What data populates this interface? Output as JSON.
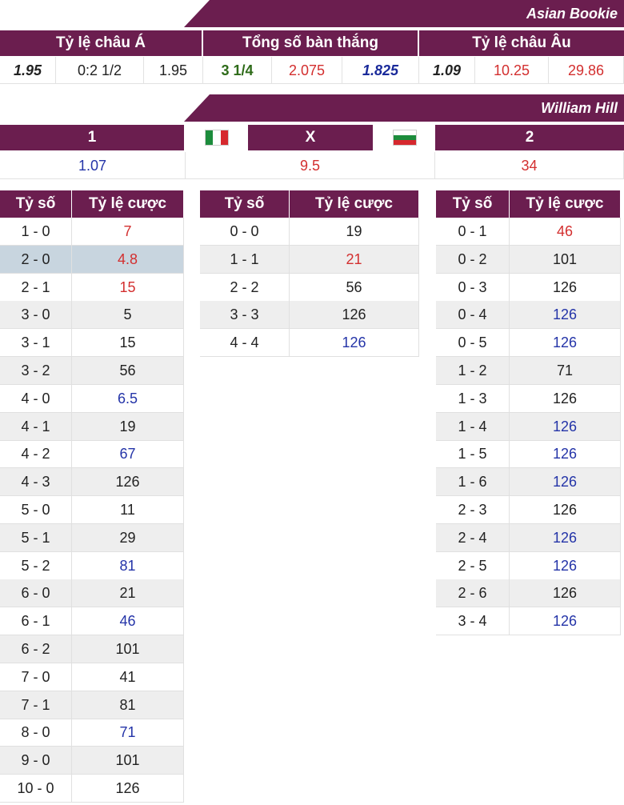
{
  "asian_bookie": {
    "title": "Asian Bookie",
    "headers": [
      "Tỷ lệ châu Á",
      "Tổng số bàn thắng",
      "Tỷ lệ châu Âu"
    ],
    "values": [
      "1.95",
      "0:2 1/2",
      "1.95",
      "3 1/4",
      "2.075",
      "1.825",
      "1.09",
      "10.25",
      "29.86"
    ]
  },
  "william_hill": {
    "title": "William Hill",
    "headers": [
      "1",
      "X",
      "2"
    ],
    "values": [
      "1.07",
      "9.5",
      "34"
    ],
    "flags": [
      "italy-flag",
      "bulgaria-flag"
    ]
  },
  "colors": {
    "header_bg": "#6b1e4f",
    "red": "#d32f2f",
    "blue": "#2434a8"
  },
  "score_tables": {
    "col_score": "Tỷ số",
    "col_odds": "Tỷ lệ cược",
    "home": [
      {
        "score": "1 - 0",
        "odds": "7",
        "color": "red"
      },
      {
        "score": "2 - 0",
        "odds": "4.8",
        "color": "red",
        "highlight": true
      },
      {
        "score": "2 - 1",
        "odds": "15",
        "color": "red"
      },
      {
        "score": "3 - 0",
        "odds": "5",
        "color": "dark"
      },
      {
        "score": "3 - 1",
        "odds": "15",
        "color": "dark"
      },
      {
        "score": "3 - 2",
        "odds": "56",
        "color": "dark"
      },
      {
        "score": "4 - 0",
        "odds": "6.5",
        "color": "blue"
      },
      {
        "score": "4 - 1",
        "odds": "19",
        "color": "dark"
      },
      {
        "score": "4 - 2",
        "odds": "67",
        "color": "blue"
      },
      {
        "score": "4 - 3",
        "odds": "126",
        "color": "dark"
      },
      {
        "score": "5 - 0",
        "odds": "11",
        "color": "dark"
      },
      {
        "score": "5 - 1",
        "odds": "29",
        "color": "dark"
      },
      {
        "score": "5 - 2",
        "odds": "81",
        "color": "blue"
      },
      {
        "score": "6 - 0",
        "odds": "21",
        "color": "dark"
      },
      {
        "score": "6 - 1",
        "odds": "46",
        "color": "blue"
      },
      {
        "score": "6 - 2",
        "odds": "101",
        "color": "dark"
      },
      {
        "score": "7 - 0",
        "odds": "41",
        "color": "dark"
      },
      {
        "score": "7 - 1",
        "odds": "81",
        "color": "dark"
      },
      {
        "score": "8 - 0",
        "odds": "71",
        "color": "blue"
      },
      {
        "score": "9 - 0",
        "odds": "101",
        "color": "dark"
      },
      {
        "score": "10 - 0",
        "odds": "126",
        "color": "dark"
      }
    ],
    "draw": [
      {
        "score": "0 - 0",
        "odds": "19",
        "color": "dark"
      },
      {
        "score": "1 - 1",
        "odds": "21",
        "color": "red"
      },
      {
        "score": "2 - 2",
        "odds": "56",
        "color": "dark"
      },
      {
        "score": "3 - 3",
        "odds": "126",
        "color": "dark"
      },
      {
        "score": "4 - 4",
        "odds": "126",
        "color": "blue"
      }
    ],
    "away": [
      {
        "score": "0 - 1",
        "odds": "46",
        "color": "red"
      },
      {
        "score": "0 - 2",
        "odds": "101",
        "color": "dark"
      },
      {
        "score": "0 - 3",
        "odds": "126",
        "color": "dark"
      },
      {
        "score": "0 - 4",
        "odds": "126",
        "color": "blue"
      },
      {
        "score": "0 - 5",
        "odds": "126",
        "color": "blue"
      },
      {
        "score": "1 - 2",
        "odds": "71",
        "color": "dark"
      },
      {
        "score": "1 - 3",
        "odds": "126",
        "color": "dark"
      },
      {
        "score": "1 - 4",
        "odds": "126",
        "color": "blue"
      },
      {
        "score": "1 - 5",
        "odds": "126",
        "color": "blue"
      },
      {
        "score": "1 - 6",
        "odds": "126",
        "color": "blue"
      },
      {
        "score": "2 - 3",
        "odds": "126",
        "color": "dark"
      },
      {
        "score": "2 - 4",
        "odds": "126",
        "color": "blue"
      },
      {
        "score": "2 - 5",
        "odds": "126",
        "color": "blue"
      },
      {
        "score": "2 - 6",
        "odds": "126",
        "color": "dark"
      },
      {
        "score": "3 - 4",
        "odds": "126",
        "color": "blue"
      }
    ]
  }
}
